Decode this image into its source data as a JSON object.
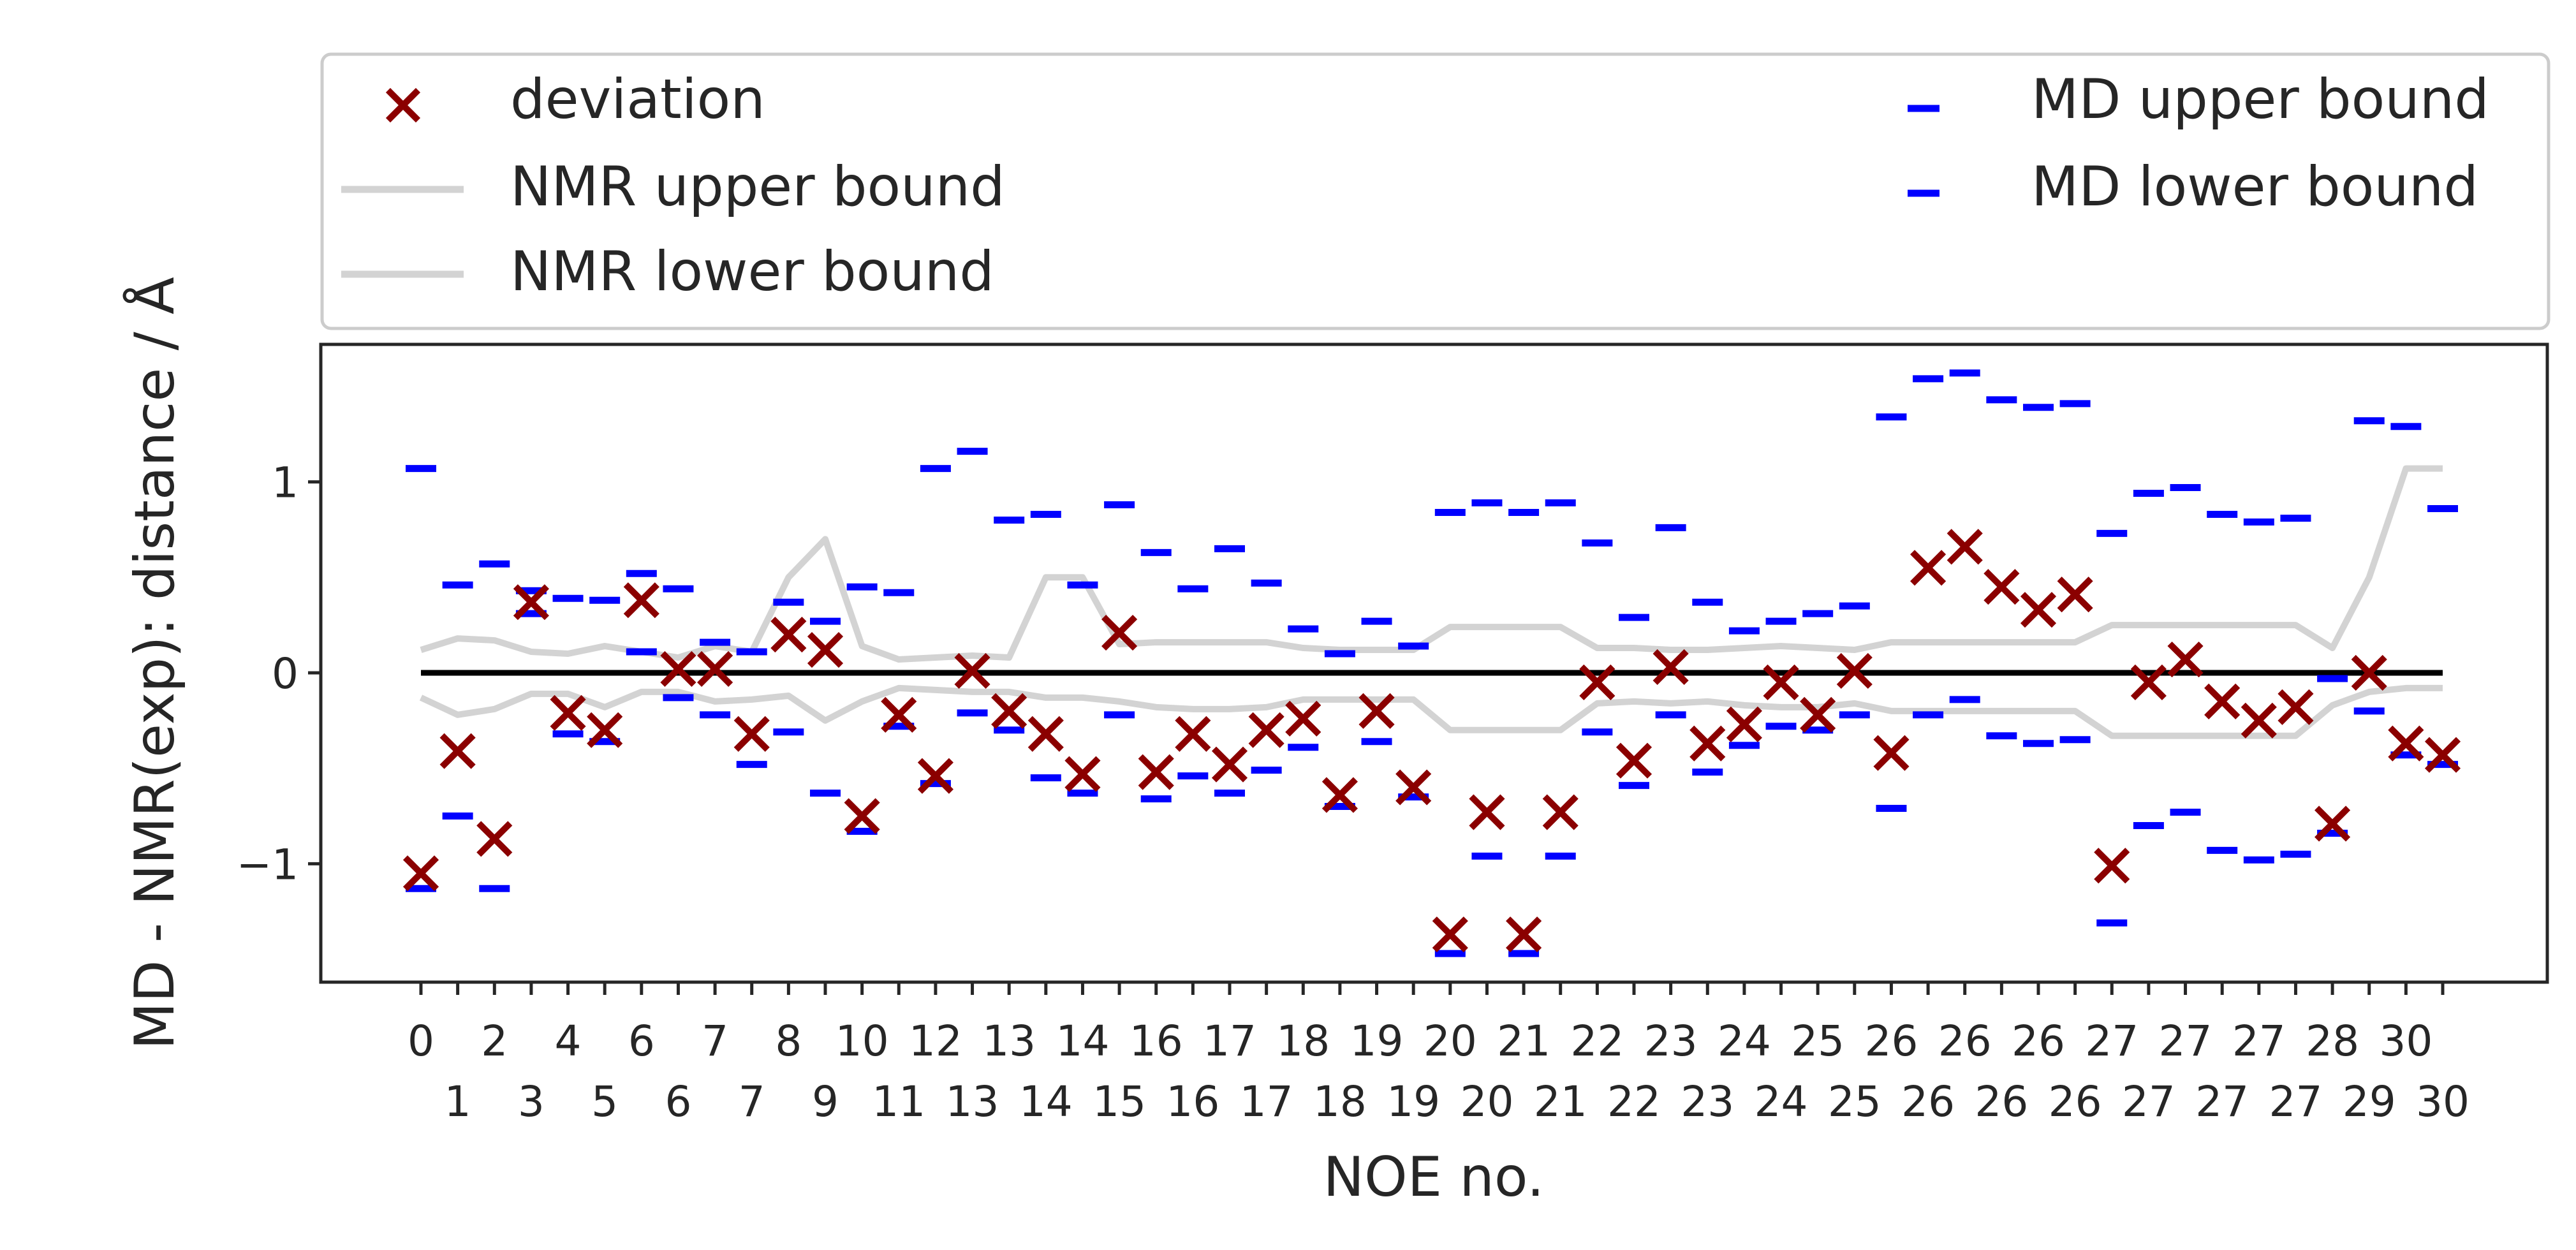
{
  "chart_data": {
    "type": "scatter",
    "title": "",
    "xlabel": "NOE no.",
    "ylabel": "MD - NMR(exp): distance / Å",
    "ylim": [
      -1.62,
      1.72
    ],
    "yticks": [
      {
        "value": 1,
        "label": "1"
      },
      {
        "value": 0,
        "label": "0"
      },
      {
        "value": -1,
        "label": "−1"
      }
    ],
    "grid": false,
    "legend_position": "top, above plot",
    "legend": [
      {
        "key": "deviation",
        "label": "deviation",
        "marker": "x",
        "color": "#8b0000"
      },
      {
        "key": "nmr_upper",
        "label": "NMR upper bound",
        "marker": "line",
        "color": "#d3d3d3"
      },
      {
        "key": "nmr_lower",
        "label": "NMR lower bound",
        "marker": "line",
        "color": "#d3d3d3"
      },
      {
        "key": "md_upper",
        "label": "MD upper bound",
        "marker": "_",
        "color": "#0000ff"
      },
      {
        "key": "md_lower",
        "label": "MD lower bound",
        "marker": "_",
        "color": "#0000ff"
      }
    ],
    "x_tick_labels": [
      "0",
      "1",
      "2",
      "3",
      "4",
      "5",
      "6",
      "6",
      "7",
      "7",
      "8",
      "9",
      "10",
      "11",
      "12",
      "13",
      "13",
      "14",
      "14",
      "15",
      "16",
      "16",
      "17",
      "17",
      "18",
      "18",
      "19",
      "19",
      "20",
      "20",
      "21",
      "21",
      "22",
      "22",
      "23",
      "23",
      "24",
      "24",
      "25",
      "25",
      "26",
      "26",
      "26",
      "26",
      "26",
      "26",
      "27",
      "27",
      "27",
      "27",
      "27",
      "27",
      "28",
      "29",
      "30",
      "30"
    ],
    "reference_line": {
      "y": 0,
      "color": "#000000"
    },
    "series": [
      {
        "name": "deviation",
        "values": [
          -1.05,
          -0.41,
          -0.87,
          0.37,
          -0.21,
          -0.3,
          0.38,
          0.02,
          0.02,
          -0.32,
          0.2,
          0.12,
          -0.75,
          -0.22,
          -0.54,
          0.01,
          -0.2,
          -0.32,
          -0.53,
          0.21,
          -0.52,
          -0.32,
          -0.48,
          -0.3,
          -0.24,
          -0.64,
          -0.2,
          -0.6,
          -1.37,
          -0.73,
          -1.37,
          -0.73,
          -0.05,
          -0.46,
          0.03,
          -0.37,
          -0.27,
          -0.05,
          -0.22,
          0.01,
          -0.42,
          0.55,
          0.66,
          0.45,
          0.33,
          0.41,
          -1.01,
          -0.05,
          0.07,
          -0.15,
          -0.25,
          -0.18,
          -0.79,
          0.0,
          -0.37,
          -0.43
        ]
      },
      {
        "name": "NMR upper bound",
        "values": [
          0.12,
          0.18,
          0.17,
          0.11,
          0.1,
          0.14,
          0.11,
          0.08,
          0.14,
          0.11,
          0.5,
          0.7,
          0.14,
          0.07,
          0.08,
          0.09,
          0.08,
          0.5,
          0.5,
          0.15,
          0.16,
          0.16,
          0.16,
          0.16,
          0.13,
          0.12,
          0.12,
          0.12,
          0.24,
          0.24,
          0.24,
          0.24,
          0.13,
          0.13,
          0.12,
          0.12,
          0.13,
          0.14,
          0.13,
          0.12,
          0.16,
          0.16,
          0.16,
          0.16,
          0.16,
          0.16,
          0.25,
          0.25,
          0.25,
          0.25,
          0.25,
          0.25,
          0.13,
          0.5,
          1.07,
          1.07
        ]
      },
      {
        "name": "NMR lower bound",
        "values": [
          -0.13,
          -0.22,
          -0.19,
          -0.11,
          -0.11,
          -0.18,
          -0.1,
          -0.1,
          -0.15,
          -0.14,
          -0.12,
          -0.25,
          -0.15,
          -0.08,
          -0.09,
          -0.1,
          -0.1,
          -0.13,
          -0.13,
          -0.15,
          -0.18,
          -0.19,
          -0.19,
          -0.18,
          -0.14,
          -0.14,
          -0.14,
          -0.14,
          -0.3,
          -0.3,
          -0.3,
          -0.3,
          -0.16,
          -0.15,
          -0.16,
          -0.15,
          -0.17,
          -0.18,
          -0.18,
          -0.16,
          -0.2,
          -0.2,
          -0.2,
          -0.2,
          -0.2,
          -0.2,
          -0.33,
          -0.33,
          -0.33,
          -0.33,
          -0.33,
          -0.33,
          -0.17,
          -0.1,
          -0.08,
          -0.08
        ]
      },
      {
        "name": "MD upper bound",
        "values": [
          1.07,
          0.46,
          0.57,
          0.43,
          0.39,
          0.38,
          0.52,
          0.44,
          0.16,
          0.11,
          0.37,
          0.27,
          0.45,
          0.42,
          1.07,
          1.16,
          0.8,
          0.83,
          0.46,
          0.88,
          0.63,
          0.44,
          0.65,
          0.47,
          0.23,
          0.1,
          0.27,
          0.14,
          0.84,
          0.89,
          0.84,
          0.89,
          0.68,
          0.29,
          0.76,
          0.37,
          0.22,
          0.27,
          0.31,
          0.35,
          1.34,
          1.54,
          1.57,
          1.43,
          1.39,
          1.41,
          0.73,
          0.94,
          0.97,
          0.83,
          0.79,
          0.81,
          -0.03,
          1.32,
          1.29,
          0.86
        ]
      },
      {
        "name": "MD lower bound",
        "values": [
          -1.13,
          -0.75,
          -1.13,
          0.31,
          -0.32,
          -0.36,
          0.11,
          -0.13,
          -0.22,
          -0.48,
          -0.31,
          -0.63,
          -0.83,
          -0.28,
          -0.58,
          -0.21,
          -0.3,
          -0.55,
          -0.63,
          -0.22,
          -0.66,
          -0.54,
          -0.63,
          -0.51,
          -0.39,
          -0.7,
          -0.36,
          -0.65,
          -1.47,
          -0.96,
          -1.47,
          -0.96,
          -0.31,
          -0.59,
          -0.22,
          -0.52,
          -0.38,
          -0.28,
          -0.3,
          -0.22,
          -0.71,
          -0.22,
          -0.14,
          -0.33,
          -0.37,
          -0.35,
          -1.31,
          -0.8,
          -0.73,
          -0.93,
          -0.98,
          -0.95,
          -0.84,
          -0.2,
          -0.43,
          -0.48
        ]
      }
    ]
  }
}
